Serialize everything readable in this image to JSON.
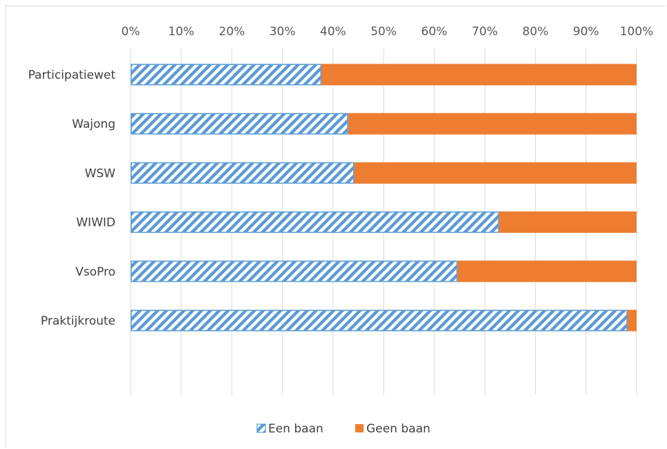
{
  "chart_data": {
    "type": "bar",
    "orientation": "horizontal",
    "stacked": "percent",
    "categories": [
      "Participatiewet",
      "Wajong",
      "WSW",
      "WIWID",
      "VsoPro",
      "Praktijkroute"
    ],
    "series": [
      {
        "name": "Een baan",
        "values": [
          37.7,
          43.0,
          44.2,
          72.8,
          64.6,
          98.2
        ],
        "color": "#5b9bd5",
        "pattern": "diagonal-stripes"
      },
      {
        "name": "Geen baan",
        "values": [
          62.3,
          57.0,
          55.8,
          27.2,
          35.4,
          1.8
        ],
        "color": "#ed7d31",
        "pattern": "solid"
      }
    ],
    "x_ticks": [
      "0%",
      "10%",
      "20%",
      "30%",
      "40%",
      "50%",
      "60%",
      "70%",
      "80%",
      "90%",
      "100%"
    ],
    "xlim": [
      0,
      100
    ],
    "x_axis_position": "top",
    "grid": true,
    "legend_position": "bottom",
    "title": "",
    "xlabel": "",
    "ylabel": ""
  }
}
